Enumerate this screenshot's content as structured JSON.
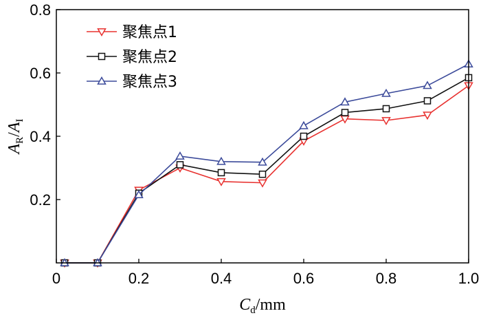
{
  "chart_data": {
    "type": "line",
    "title": "",
    "xlabel": {
      "main": "C",
      "sub": "d",
      "unit": "/mm"
    },
    "ylabel": {
      "num_main": "A",
      "num_sub": "R",
      "sep": "/",
      "den_main": "A",
      "den_sub": "I"
    },
    "xlim": [
      0,
      1.0
    ],
    "ylim": [
      0,
      0.8
    ],
    "xticks": [
      0,
      0.2,
      0.4,
      0.6,
      0.8,
      1.0
    ],
    "xtick_labels": [
      "0",
      "0.2",
      "0.4",
      "0.6",
      "0.8",
      "1.0"
    ],
    "yticks": [
      0.2,
      0.4,
      0.6,
      0.8
    ],
    "ytick_labels": [
      "0.2",
      "0.4",
      "0.6",
      "0.8"
    ],
    "grid": false,
    "legend_position": "top-left",
    "x": [
      0.02,
      0.1,
      0.2,
      0.3,
      0.4,
      0.5,
      0.6,
      0.7,
      0.8,
      0.9,
      1.0
    ],
    "series": [
      {
        "name": "聚焦点1",
        "color": "#e8312f",
        "marker": "triangle-down",
        "values": [
          0,
          0,
          0.23,
          0.3,
          0.257,
          0.253,
          0.385,
          0.455,
          0.45,
          0.467,
          0.56
        ]
      },
      {
        "name": "聚焦点2",
        "color": "#111111",
        "marker": "square",
        "values": [
          0,
          0,
          0.22,
          0.31,
          0.285,
          0.28,
          0.4,
          0.475,
          0.487,
          0.512,
          0.585
        ]
      },
      {
        "name": "聚焦点3",
        "color": "#3b4a9a",
        "marker": "triangle-up",
        "values": [
          0,
          0,
          0.215,
          0.337,
          0.32,
          0.318,
          0.433,
          0.508,
          0.535,
          0.56,
          0.628
        ]
      }
    ]
  }
}
